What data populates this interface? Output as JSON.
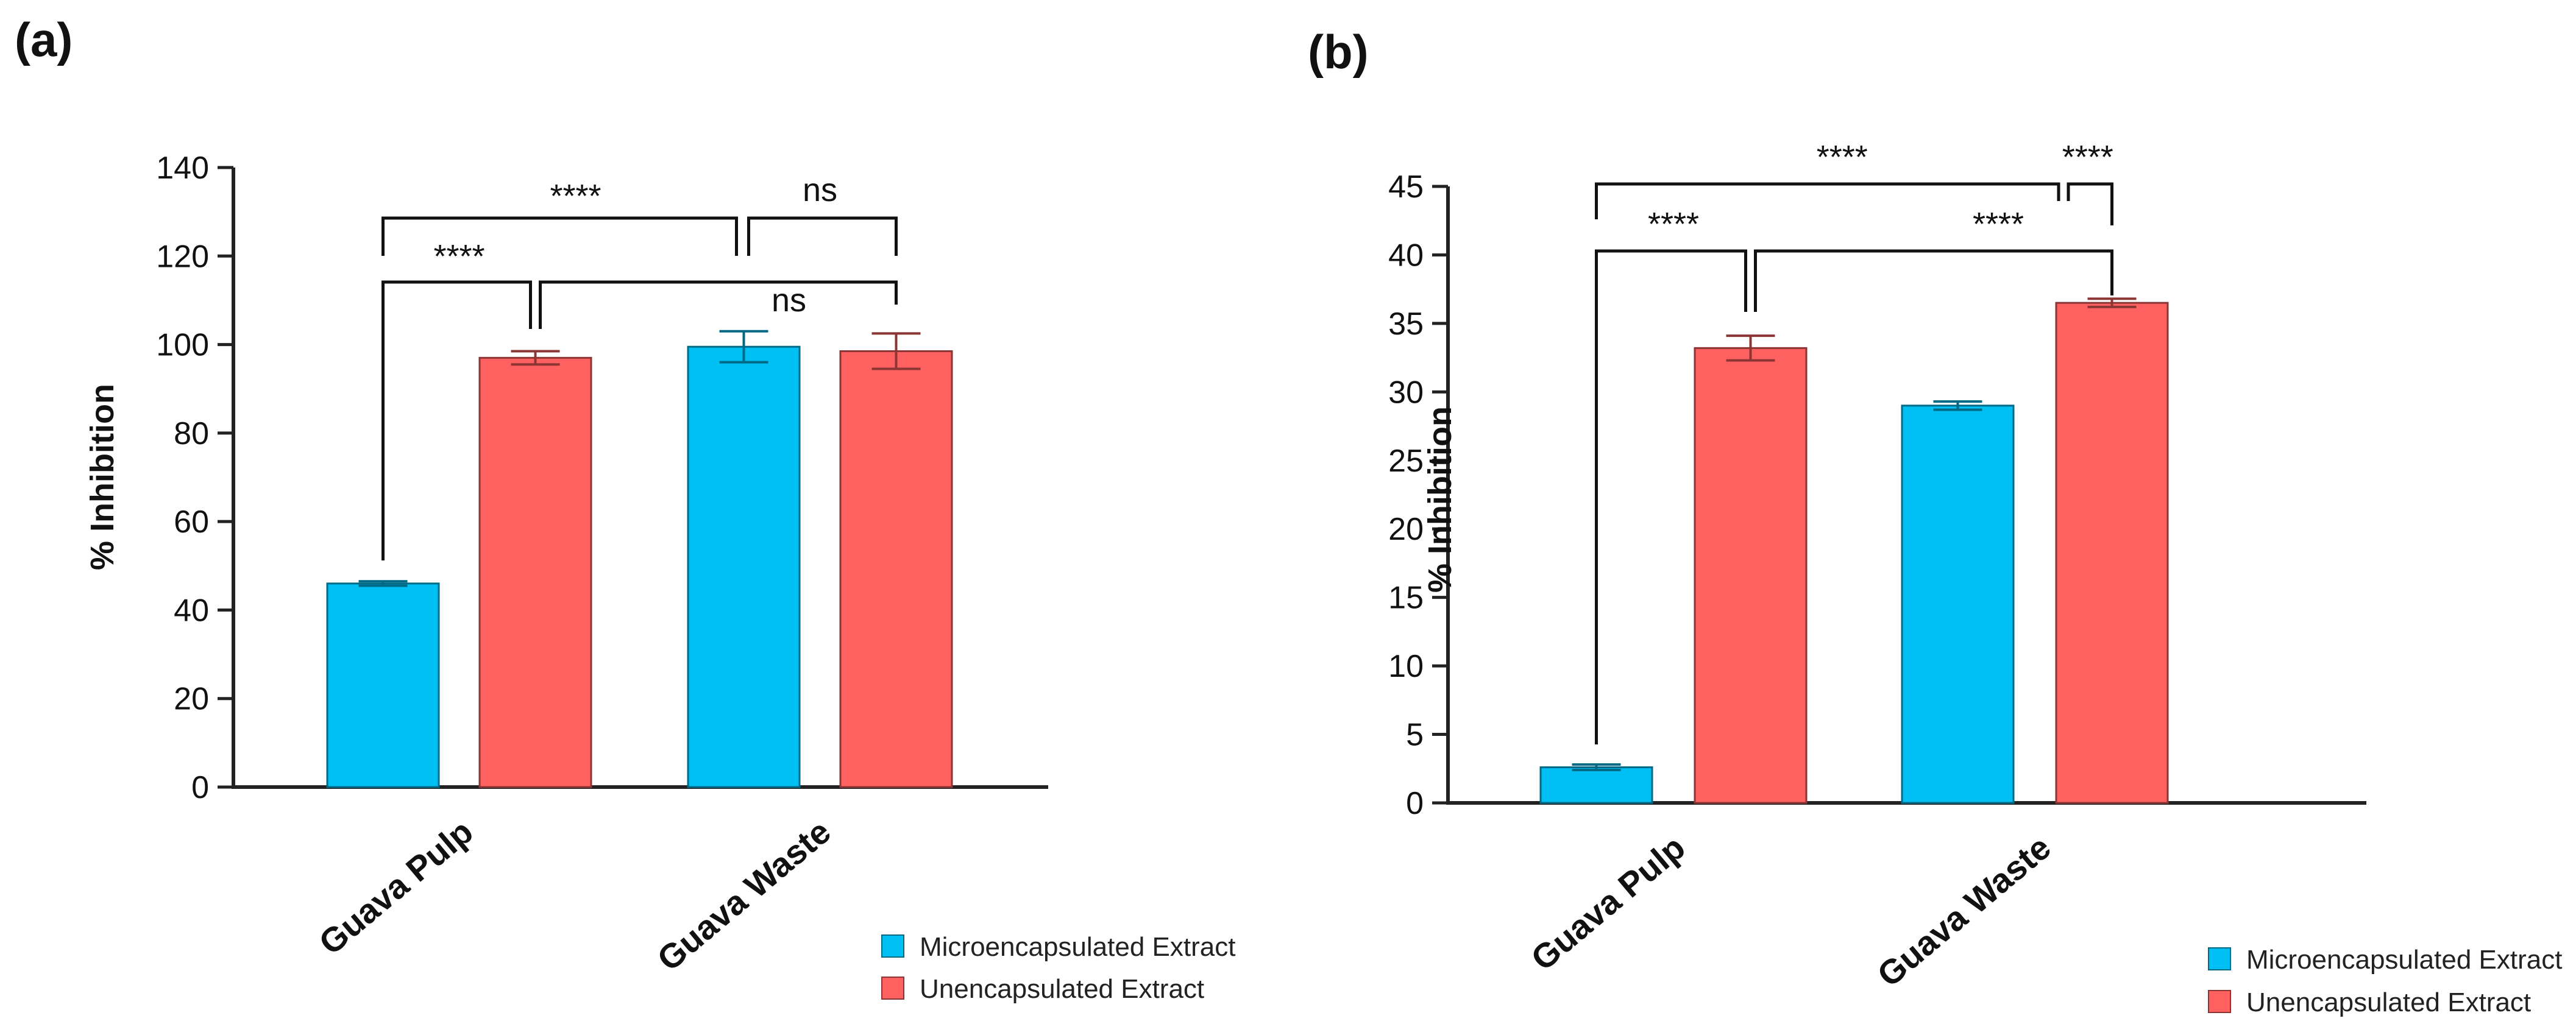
{
  "chart_data": [
    {
      "panel_label": "(a)",
      "type": "bar",
      "ylabel": "% Inhibition",
      "ylim": [
        0,
        140
      ],
      "yticks": [
        0,
        20,
        40,
        60,
        80,
        100,
        120,
        140
      ],
      "categories": [
        "Guava Pulp",
        "Guava Waste"
      ],
      "series": [
        {
          "name": "Microencapsulated Extract",
          "color": "#00BFF3",
          "values": [
            46,
            99.5
          ],
          "errors": [
            0.5,
            3.5
          ]
        },
        {
          "name": "Unencapsulated Extract",
          "color": "#FF6060",
          "values": [
            97,
            98.5
          ],
          "errors": [
            1.5,
            4
          ]
        }
      ],
      "legend_position": "bottom-right",
      "significance": [
        {
          "label": "****"
        },
        {
          "label": "****"
        },
        {
          "label": "ns"
        },
        {
          "label": "ns"
        }
      ]
    },
    {
      "panel_label": "(b)",
      "type": "bar",
      "ylabel": "% Inhibition",
      "ylim": [
        0,
        45
      ],
      "yticks": [
        0,
        5,
        10,
        15,
        20,
        25,
        30,
        35,
        40,
        45
      ],
      "categories": [
        "Guava Pulp",
        "Guava Waste"
      ],
      "series": [
        {
          "name": "Microencapsulated Extract",
          "color": "#00BFF3",
          "values": [
            2.6,
            29
          ],
          "errors": [
            0.2,
            0.3
          ]
        },
        {
          "name": "Unencapsulated Extract",
          "color": "#FF6060",
          "values": [
            33.2,
            36.5
          ],
          "errors": [
            0.9,
            0.3
          ]
        }
      ],
      "legend_position": "bottom-right",
      "significance": [
        {
          "label": "****"
        },
        {
          "label": "****"
        },
        {
          "label": "****"
        },
        {
          "label": "****"
        }
      ]
    }
  ]
}
